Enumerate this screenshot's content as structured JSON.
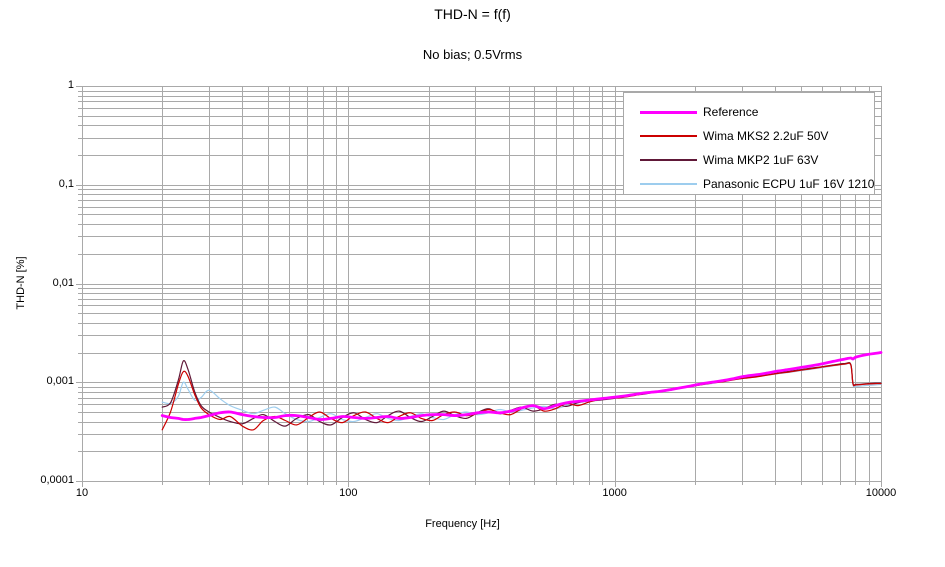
{
  "chart_data": {
    "type": "line",
    "title": "THD-N = f(f)",
    "subtitle": "No bias; 0.5Vrms",
    "xlabel": "Frequency [Hz]",
    "ylabel": "THD-N [%]",
    "x_scale": "log",
    "y_scale": "log",
    "xlim": [
      10,
      10000
    ],
    "ylim": [
      0.0001,
      1
    ],
    "grid": "major and minor log gridlines, both axes",
    "legend_position": "top-right inside plot, boxed",
    "x_tick_labels": [
      "10",
      "100",
      "1000",
      "10000"
    ],
    "y_tick_labels": [
      "1",
      "0,1",
      "0,01",
      "0,001",
      "0,0001"
    ],
    "colors": {
      "grid": "#A9A9A9",
      "frame": "#A9A9A9",
      "background": "#FFFFFF",
      "text": "#000000"
    },
    "x": [
      20,
      21.5,
      23,
      24,
      25,
      26.5,
      28,
      30,
      33,
      36,
      40,
      44,
      48,
      53,
      58,
      64,
      71,
      78,
      86,
      95,
      105,
      116,
      128,
      141,
      155,
      171,
      188,
      207,
      228,
      251,
      277,
      305,
      336,
      370,
      407,
      448,
      494,
      544,
      599,
      660,
      726,
      800,
      881,
      970,
      1068,
      1176,
      1295,
      1426,
      1570,
      1729,
      1904,
      2096,
      2308,
      2542,
      2799,
      3082,
      3393,
      3736,
      4114,
      4530,
      4988,
      5492,
      6047,
      6659,
      7332,
      7700,
      7850,
      8073,
      8889,
      9500,
      10000
    ],
    "series": [
      {
        "name": "Reference",
        "color": "#FF00FF",
        "width": 2.8,
        "values": [
          0.00046,
          0.00044,
          0.00043,
          0.00042,
          0.00042,
          0.00043,
          0.00044,
          0.00046,
          0.00049,
          0.0005,
          0.00047,
          0.00045,
          0.00044,
          0.00044,
          0.00046,
          0.00046,
          0.00044,
          0.00042,
          0.00043,
          0.00045,
          0.00044,
          0.00043,
          0.00044,
          0.00045,
          0.00043,
          0.00044,
          0.00046,
          0.00047,
          0.00047,
          0.00046,
          0.00047,
          0.00049,
          0.0005,
          0.00049,
          0.00051,
          0.00055,
          0.00058,
          0.00054,
          0.00058,
          0.00062,
          0.00064,
          0.00066,
          0.00068,
          0.0007,
          0.00072,
          0.00075,
          0.00078,
          0.0008,
          0.00083,
          0.00087,
          0.00091,
          0.00096,
          0.001,
          0.00104,
          0.00109,
          0.00115,
          0.00119,
          0.00124,
          0.0013,
          0.00135,
          0.00141,
          0.00147,
          0.00154,
          0.00163,
          0.00172,
          0.00176,
          0.00172,
          0.0018,
          0.00191,
          0.00196,
          0.002
        ]
      },
      {
        "name": "Wima MKS2 2.2uF 50V",
        "color": "#CC0000",
        "width": 1.2,
        "values": [
          0.00033,
          0.0005,
          0.00095,
          0.00128,
          0.00115,
          0.00075,
          0.00055,
          0.00047,
          0.00042,
          0.00045,
          0.00036,
          0.00033,
          0.00041,
          0.00045,
          0.00041,
          0.00037,
          0.00044,
          0.0005,
          0.00043,
          0.00039,
          0.00046,
          0.0005,
          0.00043,
          0.00039,
          0.00045,
          0.00049,
          0.00043,
          0.00041,
          0.00047,
          0.0005,
          0.00046,
          0.00048,
          0.00053,
          0.00049,
          0.00047,
          0.00054,
          0.00058,
          0.00051,
          0.00054,
          0.00061,
          0.00058,
          0.00063,
          0.00067,
          0.00069,
          0.0007,
          0.00073,
          0.00077,
          0.00079,
          0.00082,
          0.00086,
          0.0009,
          0.00094,
          0.00098,
          0.00101,
          0.00106,
          0.0011,
          0.00113,
          0.00118,
          0.00123,
          0.00127,
          0.00132,
          0.00137,
          0.00143,
          0.00148,
          0.00153,
          0.0015,
          0.00096,
          0.00094,
          0.00096,
          0.00097,
          0.00097
        ]
      },
      {
        "name": "Wima MKP2 1uF 63V",
        "color": "#601838",
        "width": 1.2,
        "values": [
          0.00056,
          0.00062,
          0.00105,
          0.00164,
          0.00135,
          0.0008,
          0.00058,
          0.0005,
          0.00044,
          0.0004,
          0.00038,
          0.00043,
          0.00047,
          0.0004,
          0.00036,
          0.00043,
          0.00047,
          0.0004,
          0.00037,
          0.00044,
          0.00049,
          0.00042,
          0.00039,
          0.00046,
          0.00051,
          0.00044,
          0.0004,
          0.00045,
          0.00051,
          0.00046,
          0.00043,
          0.00049,
          0.00054,
          0.00048,
          0.00052,
          0.00056,
          0.00051,
          0.00054,
          0.0006,
          0.00057,
          0.00062,
          0.00065,
          0.00066,
          0.00068,
          0.00071,
          0.00074,
          0.00076,
          0.0008,
          0.00084,
          0.00088,
          0.00091,
          0.00095,
          0.00099,
          0.00103,
          0.00107,
          0.00111,
          0.00115,
          0.00119,
          0.00124,
          0.00129,
          0.00134,
          0.00139,
          0.00144,
          0.0015,
          0.00155,
          0.00152,
          0.00098,
          0.00095,
          0.00097,
          0.00098,
          0.00098
        ]
      },
      {
        "name": "Panasonic ECPU 1uF 16V 1210",
        "color": "#9DCDEE",
        "width": 1.2,
        "values": [
          0.00063,
          0.00061,
          0.00072,
          0.001,
          0.00085,
          0.00066,
          0.0007,
          0.00083,
          0.00068,
          0.00058,
          0.00052,
          0.00048,
          0.00052,
          0.00056,
          0.00048,
          0.00042,
          0.0004,
          0.00044,
          0.00048,
          0.00042,
          0.0004,
          0.00044,
          0.00048,
          0.00043,
          0.00041,
          0.00045,
          0.00048,
          0.00044,
          0.00042,
          0.00047,
          0.0005,
          0.00047,
          0.00049,
          0.00053,
          0.0005,
          0.00052,
          0.00055,
          0.00057,
          0.00054,
          0.00058,
          0.00062,
          0.00064,
          0.00066,
          0.00069,
          0.00072,
          0.00074,
          0.00077,
          0.0008,
          0.00083,
          0.00087,
          0.0009,
          0.00094,
          0.00097,
          0.00102,
          0.00106,
          0.0011,
          0.00114,
          0.00118,
          0.00122,
          0.00126,
          0.00131,
          0.00136,
          0.00141,
          0.00147,
          0.00152,
          0.00149,
          0.00094,
          0.00091,
          0.00093,
          0.00094,
          0.00095
        ]
      }
    ]
  }
}
